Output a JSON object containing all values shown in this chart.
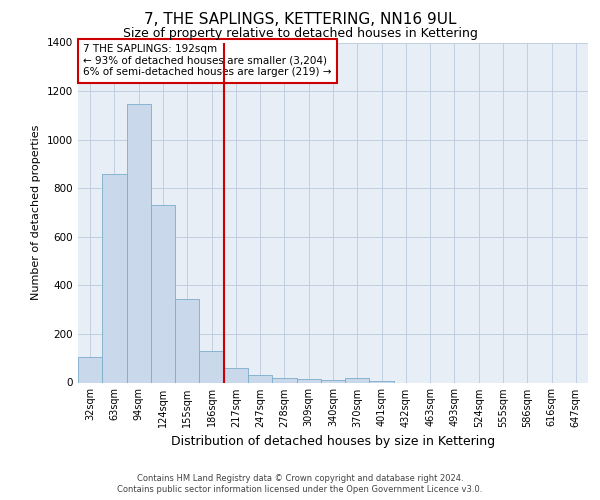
{
  "title": "7, THE SAPLINGS, KETTERING, NN16 9UL",
  "subtitle": "Size of property relative to detached houses in Kettering",
  "xlabel": "Distribution of detached houses by size in Kettering",
  "ylabel": "Number of detached properties",
  "categories": [
    "32sqm",
    "63sqm",
    "94sqm",
    "124sqm",
    "155sqm",
    "186sqm",
    "217sqm",
    "247sqm",
    "278sqm",
    "309sqm",
    "340sqm",
    "370sqm",
    "401sqm",
    "432sqm",
    "463sqm",
    "493sqm",
    "524sqm",
    "555sqm",
    "586sqm",
    "616sqm",
    "647sqm"
  ],
  "values": [
    105,
    860,
    1145,
    730,
    345,
    130,
    60,
    30,
    20,
    15,
    10,
    18,
    5,
    0,
    0,
    0,
    0,
    0,
    0,
    0,
    0
  ],
  "bar_color": "#c9d9eb",
  "bar_edge_color": "#7aadcc",
  "ylim": [
    0,
    1400
  ],
  "yticks": [
    0,
    200,
    400,
    600,
    800,
    1000,
    1200,
    1400
  ],
  "property_bin_index": 5,
  "vline_color": "#cc0000",
  "annotation_text": "7 THE SAPLINGS: 192sqm\n← 93% of detached houses are smaller (3,204)\n6% of semi-detached houses are larger (219) →",
  "annotation_box_color": "#cc0000",
  "footer_line1": "Contains HM Land Registry data © Crown copyright and database right 2024.",
  "footer_line2": "Contains public sector information licensed under the Open Government Licence v3.0.",
  "bg_color": "#ffffff",
  "plot_bg_color": "#e8eef6",
  "grid_color": "#c0cfe0",
  "title_fontsize": 11,
  "subtitle_fontsize": 9,
  "tick_fontsize": 7,
  "ylabel_fontsize": 8,
  "xlabel_fontsize": 9
}
